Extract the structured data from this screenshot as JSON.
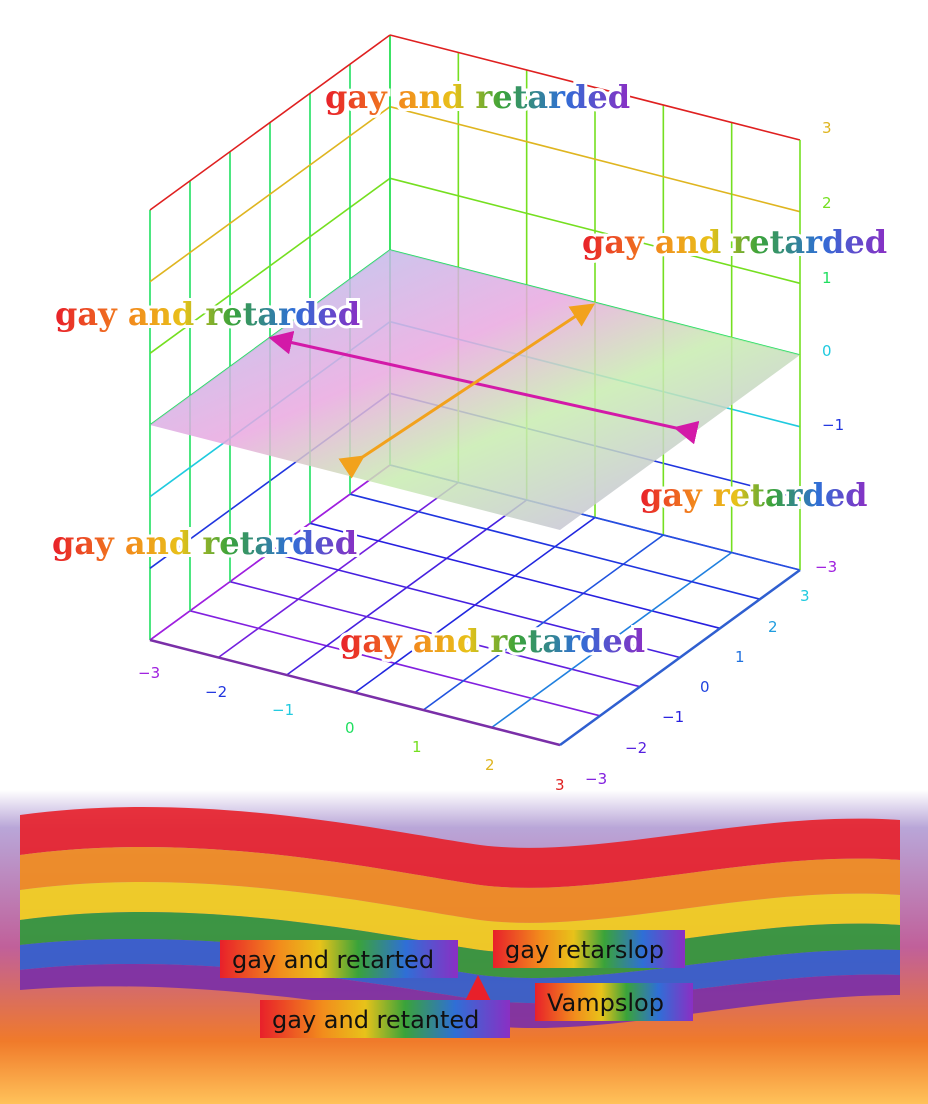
{
  "labels": [
    "gay and retarded",
    "gay and retarded",
    "gay and retarded",
    "gay retarded",
    "gay and retarded",
    "gay and retarded"
  ],
  "boxes": [
    "gay and retarted",
    "gay retarslop",
    "gay and retanted",
    "Vampslop"
  ],
  "axes": {
    "z_ticks": [
      "3",
      "2",
      "1",
      "0",
      "−1",
      "−3"
    ],
    "x_ticks": [
      "−3",
      "−2",
      "−1",
      "0",
      "1",
      "2",
      "3"
    ],
    "y_ticks": [
      "3",
      "2",
      "1",
      "0",
      "−1",
      "−2",
      "−3"
    ]
  }
}
